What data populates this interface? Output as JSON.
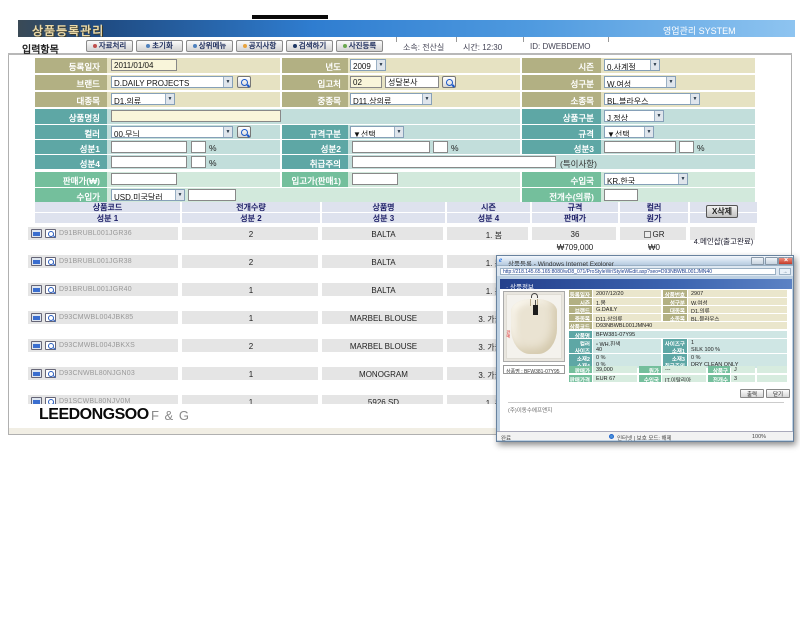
{
  "header": {
    "title": "상품등록관리",
    "system_label": "영업관리 SYSTEM"
  },
  "toolbar": {
    "section_label": "입력항목",
    "buttons": [
      "자료처리",
      "초기화",
      "상위메뉴",
      "공지사항",
      "검색하기",
      "사진등록"
    ],
    "info": [
      {
        "label": "소속:",
        "value": "전산실"
      },
      {
        "label": "시간:",
        "value": "12:30"
      },
      {
        "label": "ID:",
        "value": "DWEBDEMO"
      }
    ]
  },
  "form": {
    "reg_date": {
      "label": "등록일자",
      "value": "2011/01/04"
    },
    "year": {
      "label": "년도",
      "value": "2009"
    },
    "season": {
      "label": "시즌",
      "value": "0.사계절"
    },
    "brand": {
      "label": "브랜드",
      "value": "D.DAILY PROJECTS"
    },
    "supplier": {
      "label": "입고처",
      "code": "02",
      "name": "성달본사"
    },
    "gender": {
      "label": "성구분",
      "value": "W.여성"
    },
    "cat_large": {
      "label": "대종목",
      "value": "D1.의류"
    },
    "cat_mid": {
      "label": "중종목",
      "value": "D11.상의류"
    },
    "cat_small": {
      "label": "소종목",
      "value": "BL.블라우스"
    },
    "product_name": {
      "label": "상품명칭",
      "value": ""
    },
    "product_type": {
      "label": "상품구분",
      "value": "J.정상"
    },
    "color": {
      "label": "컬러",
      "value": "00.무늬"
    },
    "spec_type": {
      "label": "규격구분",
      "value": "▼선택"
    },
    "spec": {
      "label": "규격",
      "value": "▼선택"
    },
    "comp1": {
      "label": "성분1",
      "pct": "%"
    },
    "comp2": {
      "label": "성분2",
      "pct": "%"
    },
    "comp3": {
      "label": "성분3",
      "pct": "%"
    },
    "comp4": {
      "label": "성분4",
      "pct": "%"
    },
    "care": {
      "label": "취급주의",
      "note": "(특이사항)"
    },
    "sell_price": {
      "label": "판매가(₩)"
    },
    "in_price": {
      "label": "입고가(판매1)"
    },
    "import_country": {
      "label": "수입국",
      "value": "KR.한국"
    },
    "import_price": {
      "label": "수입가",
      "value": "USD.미국달러"
    },
    "expand_count": {
      "label": "전개수(의류)"
    }
  },
  "table": {
    "headers_row1": [
      "상품코드",
      "전개수량",
      "상품명",
      "시즌",
      "규격",
      "컬러"
    ],
    "headers_row2": [
      "성분 1",
      "성분 2",
      "성분 3",
      "성분 4",
      "판매가",
      "원가"
    ],
    "delete_button": "X삭제",
    "rows": [
      {
        "code": "D91BRUBL001JGR36",
        "qty": "2",
        "name": "BALTA",
        "season": "1. 봄",
        "spec": "36",
        "color": "GR",
        "price": "₩709,000",
        "cost": "₩0",
        "note": "4.메인샵(출고완료)"
      },
      {
        "code": "D91BRUBL001JGR38",
        "qty": "2",
        "name": "BALTA",
        "season": "1. 봄",
        "spec": "",
        "color": "",
        "price": "",
        "cost": "",
        "note": ""
      },
      {
        "code": "D91BRUBL001JGR40",
        "qty": "1",
        "name": "BALTA",
        "season": "1. 봄",
        "spec": "",
        "color": "",
        "price": "",
        "cost": "",
        "note": ""
      },
      {
        "code": "D93CMWBL004JBK85",
        "qty": "1",
        "name": "MARBEL BLOUSE",
        "season": "3. 가을",
        "spec": "",
        "color": "",
        "price": "",
        "cost": "",
        "note": ""
      },
      {
        "code": "D93CMWBL004JBKXS",
        "qty": "2",
        "name": "MARBEL BLOUSE",
        "season": "3. 가을",
        "spec": "",
        "color": "",
        "price": "",
        "cost": "",
        "note": ""
      },
      {
        "code": "D93CNWBL80NJGN03",
        "qty": "1",
        "name": "MONOGRAM",
        "season": "3. 가을",
        "spec": "",
        "color": "",
        "price": "",
        "cost": "",
        "note": ""
      },
      {
        "code": "D91SCWBL80NJV0M",
        "qty": "1",
        "name": "5926 SD",
        "season": "1. 봄",
        "spec": "",
        "color": "",
        "price": "",
        "cost": "",
        "note": ""
      }
    ]
  },
  "footer": {
    "logo_main": "LEEDONGSOO",
    "logo_sub": "F & G"
  },
  "popup": {
    "window_title": "상품등록 - Windows Internet Explorer",
    "url": "http://218.145.65.165:8080/wD8_071/ProStyleWr/StyleWEdit.asp?seo=D93NBWBL001JMN40",
    "section_title": "상품정보",
    "photo_caption": "상품명 : BFW381-07Y95",
    "khaki_rows": [
      {
        "l": "등록일자",
        "v": "2007/12/20",
        "l2": "상품번호",
        "v2": "2907"
      },
      {
        "l": "시즌",
        "v": "1.봄",
        "l2": "성구분",
        "v2": "W.여성"
      },
      {
        "l": "브랜드",
        "v": "G.DAILY",
        "l2": "대종목",
        "v2": "D1.의류"
      },
      {
        "l": "중종목",
        "v": "D11.상의류",
        "l2": "소종목",
        "v2": "BL.블라우스"
      },
      {
        "l": "상품코드",
        "v": "D93NBWBL001JMN40",
        "span": true
      }
    ],
    "teal_rows": [
      {
        "l": "상품명",
        "v": "BFW381-07Y95",
        "span": true
      },
      {
        "l": "컬러",
        "v": "WH.흰색",
        "l2": "사이즈구분",
        "v2": "1",
        "swatch": true
      },
      {
        "l": "사이즈",
        "v": "40",
        "l2": "소재1",
        "v2": "SILK  100 %"
      },
      {
        "l": "소재2",
        "v": "0 %",
        "l2": "소재3",
        "v2": "0 %"
      },
      {
        "l": "소재4",
        "v": "0 %",
        "l2": "취급주의",
        "v2": "DRY CLEAN ONLY"
      }
    ],
    "green_rows": [
      {
        "l": "판매가",
        "v": "39,000",
        "l2": "원가",
        "v2": "---",
        "l3": "상품구분",
        "v3": "J"
      },
      {
        "l": "판매가격 수입단가",
        "v": "EUR 67",
        "l2": "수입국",
        "v2": "IT.이탈리아",
        "l3": "전개수량",
        "v3": "3"
      }
    ],
    "buttons": [
      "출력",
      "닫기"
    ],
    "footer_note": "(주)이동수에프앤지",
    "status_left": "완료",
    "status_mid": "인터넷 | 보호 모드: 해제",
    "status_right": "100%"
  }
}
